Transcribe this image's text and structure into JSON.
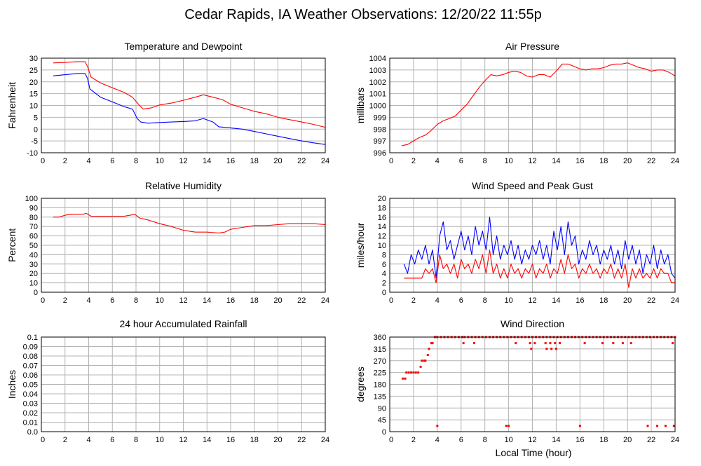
{
  "page_title": "Cedar Rapids, IA Weather Observations: 12/20/22 11:55p",
  "x_axis_label": "Local Time (hour)",
  "colors": {
    "red": "#ff0000",
    "blue": "#0000ff",
    "grid": "#b4b4b4",
    "frame": "#000000"
  },
  "chart_data": [
    {
      "id": "temp",
      "type": "line",
      "title": "Temperature and Dewpoint",
      "ylabel": "Fahrenheit",
      "xlim": [
        0,
        24
      ],
      "ylim": [
        -10,
        30
      ],
      "xticks": [
        2,
        4,
        6,
        8,
        10,
        12,
        14,
        16,
        18,
        20,
        22,
        24
      ],
      "yticks": [
        -10,
        -5,
        0,
        5,
        10,
        15,
        20,
        25,
        30
      ],
      "series": [
        {
          "color": "#ff0000",
          "x": [
            1,
            2,
            3,
            3.7,
            3.9,
            4.2,
            5,
            6,
            7,
            7.7,
            8.3,
            8.6,
            9.3,
            10,
            11,
            12,
            13,
            13.7,
            14.5,
            15.3,
            16,
            17,
            18,
            19,
            20,
            21,
            22,
            23,
            24
          ],
          "y": [
            28,
            28.2,
            28.5,
            28.5,
            26.5,
            22,
            19.5,
            17.5,
            15.5,
            13.5,
            10,
            8.5,
            9,
            10.2,
            11,
            12.2,
            13.5,
            14.5,
            13.5,
            12.5,
            10.5,
            9,
            7.5,
            6.5,
            5,
            4,
            3,
            2,
            0.8
          ]
        },
        {
          "color": "#0000ff",
          "x": [
            1,
            2,
            3,
            3.7,
            3.9,
            4.1,
            5,
            6,
            7,
            7.7,
            8.1,
            8.4,
            9,
            10,
            11,
            12,
            13,
            13.7,
            14.5,
            15,
            16,
            17,
            18,
            19,
            20,
            21,
            22,
            23,
            24
          ],
          "y": [
            22.5,
            23,
            23.5,
            23.5,
            21.5,
            17,
            13.5,
            11.5,
            9.5,
            8.5,
            4.5,
            3,
            2.5,
            2.8,
            3,
            3.2,
            3.5,
            4.5,
            3,
            1,
            0.5,
            0,
            -1,
            -2,
            -3,
            -4,
            -5,
            -5.8,
            -6.5
          ]
        }
      ]
    },
    {
      "id": "pres",
      "type": "line",
      "title": "Air Pressure",
      "ylabel": "millibars",
      "xlim": [
        0,
        24
      ],
      "ylim": [
        996,
        1004
      ],
      "xticks": [
        2,
        4,
        6,
        8,
        10,
        12,
        14,
        16,
        18,
        20,
        22,
        24
      ],
      "yticks": [
        996,
        997,
        998,
        999,
        1000,
        1001,
        1002,
        1003,
        1004
      ],
      "series": [
        {
          "color": "#ff0000",
          "x": [
            1,
            1.5,
            2,
            2.5,
            3,
            3.5,
            4,
            4.5,
            5,
            5.5,
            6,
            6.5,
            7,
            7.5,
            8,
            8.5,
            9,
            9.5,
            10,
            10.5,
            11,
            11.5,
            12,
            12.5,
            13,
            13.5,
            14,
            14.5,
            15,
            15.5,
            16,
            16.5,
            17,
            17.5,
            18,
            18.5,
            19,
            19.5,
            20,
            20.5,
            21,
            21.5,
            22,
            22.5,
            23,
            23.5,
            24
          ],
          "y": [
            996.6,
            996.7,
            997,
            997.3,
            997.5,
            997.9,
            998.4,
            998.7,
            998.9,
            999.1,
            999.6,
            1000.1,
            1000.8,
            1001.5,
            1002.1,
            1002.6,
            1002.5,
            1002.6,
            1002.8,
            1002.9,
            1002.8,
            1002.5,
            1002.4,
            1002.6,
            1002.6,
            1002.4,
            1002.9,
            1003.5,
            1003.5,
            1003.3,
            1003.1,
            1003,
            1003.1,
            1003.1,
            1003.2,
            1003.4,
            1003.5,
            1003.5,
            1003.6,
            1003.4,
            1003.2,
            1003.1,
            1002.9,
            1003,
            1003,
            1002.8,
            1002.5
          ]
        }
      ]
    },
    {
      "id": "rh",
      "type": "line",
      "title": "Relative Humidity",
      "ylabel": "Percent",
      "xlim": [
        0,
        24
      ],
      "ylim": [
        0,
        100
      ],
      "xticks": [
        2,
        4,
        6,
        8,
        10,
        12,
        14,
        16,
        18,
        20,
        22,
        24
      ],
      "yticks": [
        0,
        10,
        20,
        30,
        40,
        50,
        60,
        70,
        80,
        90,
        100
      ],
      "series": [
        {
          "color": "#ff0000",
          "x": [
            1,
            1.5,
            2,
            2.5,
            3,
            3.5,
            3.8,
            4.2,
            5,
            6,
            7,
            7.5,
            7.9,
            8.3,
            9,
            10,
            11,
            12,
            13,
            14,
            15,
            15.5,
            16,
            17,
            18,
            19,
            20,
            21,
            22,
            23,
            24
          ],
          "y": [
            80,
            80,
            82,
            83,
            83,
            83,
            84,
            81,
            81,
            81,
            81,
            82,
            83,
            79,
            77,
            73,
            70,
            66,
            64,
            64,
            63,
            64,
            67,
            69,
            71,
            71,
            72,
            73,
            73,
            73,
            72
          ]
        }
      ]
    },
    {
      "id": "wind",
      "type": "line",
      "title": "Wind Speed and Peak Gust",
      "ylabel": "miles/hour",
      "xlim": [
        0,
        24
      ],
      "ylim": [
        0,
        20
      ],
      "xticks": [
        2,
        4,
        6,
        8,
        10,
        12,
        14,
        16,
        18,
        20,
        22,
        24
      ],
      "yticks": [
        0,
        2,
        4,
        6,
        8,
        10,
        12,
        14,
        16,
        18,
        20
      ],
      "series": [
        {
          "color": "#0000ff",
          "x": [
            1.2,
            1.5,
            1.8,
            2.1,
            2.4,
            2.7,
            3,
            3.3,
            3.6,
            3.9,
            4.2,
            4.5,
            4.8,
            5.1,
            5.4,
            5.7,
            6,
            6.3,
            6.6,
            6.9,
            7.2,
            7.5,
            7.8,
            8.1,
            8.4,
            8.7,
            9,
            9.3,
            9.6,
            9.9,
            10.2,
            10.5,
            10.8,
            11.1,
            11.4,
            11.7,
            12,
            12.3,
            12.6,
            12.9,
            13.2,
            13.5,
            13.8,
            14.1,
            14.4,
            14.7,
            15,
            15.3,
            15.6,
            15.9,
            16.2,
            16.5,
            16.8,
            17.1,
            17.4,
            17.7,
            18,
            18.3,
            18.6,
            18.9,
            19.2,
            19.5,
            19.8,
            20.1,
            20.4,
            20.7,
            21,
            21.3,
            21.6,
            21.9,
            22.2,
            22.5,
            22.8,
            23.1,
            23.4,
            23.7,
            24
          ],
          "y": [
            6,
            4,
            8,
            6,
            9,
            7,
            10,
            6,
            9,
            3,
            12,
            15,
            9,
            11,
            7,
            10,
            13,
            9,
            12,
            8,
            14,
            10,
            13,
            9,
            16,
            8,
            12,
            7,
            10,
            8,
            11,
            7,
            10,
            6,
            9,
            7,
            10,
            8,
            11,
            7,
            10,
            6,
            13,
            9,
            14,
            8,
            15,
            10,
            12,
            6,
            9,
            7,
            11,
            8,
            10,
            6,
            9,
            7,
            10,
            6,
            9,
            5,
            11,
            7,
            10,
            6,
            9,
            4,
            8,
            6,
            10,
            5,
            9,
            6,
            8,
            4,
            3
          ]
        },
        {
          "color": "#ff0000",
          "x": [
            1.2,
            1.5,
            1.8,
            2.1,
            2.4,
            2.7,
            3,
            3.3,
            3.6,
            3.9,
            4.2,
            4.5,
            4.8,
            5.1,
            5.4,
            5.7,
            6,
            6.3,
            6.6,
            6.9,
            7.2,
            7.5,
            7.8,
            8.1,
            8.4,
            8.7,
            9,
            9.3,
            9.6,
            9.9,
            10.2,
            10.5,
            10.8,
            11.1,
            11.4,
            11.7,
            12,
            12.3,
            12.6,
            12.9,
            13.2,
            13.5,
            13.8,
            14.1,
            14.4,
            14.7,
            15,
            15.3,
            15.6,
            15.9,
            16.2,
            16.5,
            16.8,
            17.1,
            17.4,
            17.7,
            18,
            18.3,
            18.6,
            18.9,
            19.2,
            19.5,
            19.8,
            20.1,
            20.4,
            20.7,
            21,
            21.3,
            21.6,
            21.9,
            22.2,
            22.5,
            22.8,
            23.1,
            23.4,
            23.7,
            24
          ],
          "y": [
            3,
            3,
            3,
            3,
            3,
            3,
            5,
            4,
            5,
            2,
            8,
            5,
            6,
            4,
            6,
            3,
            7,
            5,
            6,
            4,
            7,
            5,
            8,
            4,
            9,
            4,
            6,
            3,
            5,
            3,
            6,
            4,
            5,
            3,
            5,
            4,
            6,
            3,
            5,
            4,
            6,
            3,
            5,
            4,
            7,
            4,
            8,
            5,
            6,
            3,
            5,
            4,
            6,
            4,
            5,
            3,
            5,
            4,
            6,
            3,
            5,
            3,
            6,
            1,
            5,
            3,
            5,
            3,
            4,
            3,
            5,
            3,
            5,
            4,
            4,
            2,
            2
          ]
        }
      ]
    },
    {
      "id": "rain",
      "type": "line",
      "title": "24 hour Accumulated Rainfall",
      "ylabel": "Inches",
      "xlim": [
        0,
        24
      ],
      "ylim": [
        0,
        0.1
      ],
      "xticks": [
        2,
        4,
        6,
        8,
        10,
        12,
        14,
        16,
        18,
        20,
        22,
        24
      ],
      "yticks": [
        0,
        0.01,
        0.02,
        0.03,
        0.04,
        0.05,
        0.06,
        0.07,
        0.08,
        0.09,
        0.1
      ],
      "ytick_labels": [
        "0.0",
        "0.01",
        "0.02",
        "0.03",
        "0.04",
        "0.05",
        "0.06",
        "0.07",
        "0.08",
        "0.09",
        "0.1"
      ],
      "series": [
        {
          "color": "#ff0000",
          "x": [
            1,
            24
          ],
          "y": [
            0,
            0
          ]
        }
      ]
    },
    {
      "id": "dir",
      "type": "scatter",
      "title": "Wind Direction",
      "ylabel": "degrees",
      "xlabel": "Local Time (hour)",
      "xlim": [
        0,
        24
      ],
      "ylim": [
        0,
        360
      ],
      "xticks": [
        2,
        4,
        6,
        8,
        10,
        12,
        14,
        16,
        18,
        20,
        22,
        24
      ],
      "yticks": [
        0,
        45,
        90,
        135,
        180,
        225,
        270,
        315,
        360
      ],
      "series": [
        {
          "color": "#ff0000",
          "x": [
            1.1,
            1.3,
            1.4,
            1.6,
            1.8,
            2.0,
            2.2,
            2.4,
            2.6,
            2.7,
            2.9,
            3.0,
            3.2,
            3.3,
            3.5,
            3.6,
            3.8,
            4.0,
            4.3,
            4.6,
            4.9,
            5.2,
            5.5,
            5.8,
            6.1,
            6.3,
            6.6,
            6.9,
            7.2,
            7.5,
            7.8,
            8.1,
            8.4,
            8.7,
            9.0,
            9.3,
            9.6,
            9.9,
            10.2,
            10.5,
            10.8,
            11.1,
            11.4,
            11.7,
            12.0,
            12.3,
            12.6,
            12.9,
            13.2,
            13.5,
            13.8,
            14.1,
            14.4,
            14.7,
            15.0,
            15.3,
            15.6,
            15.9,
            16.2,
            16.5,
            16.8,
            17.1,
            17.4,
            17.7,
            18.0,
            18.3,
            18.6,
            18.9,
            19.2,
            19.5,
            19.8,
            20.1,
            20.4,
            20.7,
            21.0,
            21.3,
            21.6,
            21.9,
            22.2,
            22.5,
            22.8,
            23.1,
            23.4,
            23.7,
            24.0,
            4.0,
            9.8,
            10.0,
            16.0,
            21.7,
            22.5,
            23.2,
            23.9,
            6.2,
            7.1,
            10.6,
            11.8,
            12.2,
            13.1,
            13.5,
            13.9,
            14.3,
            16.4,
            17.9,
            18.8,
            19.6,
            20.3,
            23.8,
            11.9,
            13.2,
            13.6,
            14.0
          ],
          "y": [
            202,
            202,
            225,
            225,
            225,
            225,
            225,
            225,
            247,
            270,
            270,
            270,
            292,
            315,
            337,
            337,
            360,
            360,
            360,
            360,
            360,
            360,
            360,
            360,
            360,
            360,
            360,
            360,
            360,
            360,
            360,
            360,
            360,
            360,
            360,
            360,
            360,
            360,
            360,
            360,
            360,
            360,
            360,
            360,
            360,
            360,
            360,
            360,
            360,
            360,
            360,
            360,
            360,
            360,
            360,
            360,
            360,
            360,
            360,
            360,
            360,
            360,
            360,
            360,
            360,
            360,
            360,
            360,
            360,
            360,
            360,
            360,
            360,
            360,
            360,
            360,
            360,
            360,
            360,
            360,
            360,
            360,
            360,
            360,
            360,
            22,
            22,
            22,
            22,
            22,
            22,
            22,
            22,
            337,
            337,
            337,
            337,
            337,
            337,
            337,
            337,
            337,
            337,
            337,
            337,
            337,
            337,
            337,
            315,
            315,
            315,
            315
          ]
        }
      ]
    }
  ]
}
